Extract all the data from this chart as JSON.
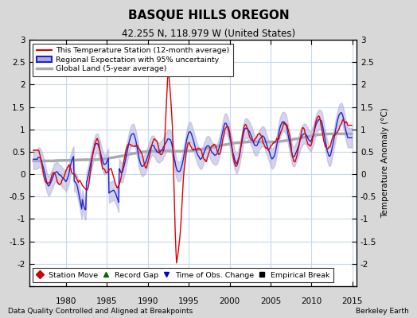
{
  "title": "BASQUE HILLS OREGON",
  "subtitle": "42.255 N, 118.979 W (United States)",
  "ylabel": "Temperature Anomaly (°C)",
  "xlabel_note": "Data Quality Controlled and Aligned at Breakpoints",
  "credit": "Berkeley Earth",
  "xlim": [
    1975.5,
    2015.5
  ],
  "ylim": [
    -2.5,
    3.0
  ],
  "yticks": [
    -2.5,
    -2,
    -1.5,
    -1,
    -0.5,
    0,
    0.5,
    1,
    1.5,
    2,
    2.5,
    3
  ],
  "xticks": [
    1980,
    1985,
    1990,
    1995,
    2000,
    2005,
    2010,
    2015
  ],
  "bg_color": "#d8d8d8",
  "plot_bg_color": "#ffffff",
  "grid_color": "#c8d8e8",
  "station_color": "#dd0000",
  "regional_color": "#2222cc",
  "regional_band_color": "#aaaadd",
  "global_color": "#aaaaaa",
  "legend_entries": [
    {
      "label": "This Temperature Station (12-month average)",
      "color": "#dd0000",
      "lw": 1.5
    },
    {
      "label": "Regional Expectation with 95% uncertainty",
      "color": "#2222cc",
      "lw": 1.5
    },
    {
      "label": "Global Land (5-year average)",
      "color": "#aaaaaa",
      "lw": 2.5
    }
  ],
  "bottom_legend": [
    {
      "label": "Station Move",
      "color": "#cc0000",
      "marker": "D"
    },
    {
      "label": "Record Gap",
      "color": "#006600",
      "marker": "^"
    },
    {
      "label": "Time of Obs. Change",
      "color": "#0000cc",
      "marker": "v"
    },
    {
      "label": "Empirical Break",
      "color": "#000000",
      "marker": "s"
    }
  ]
}
